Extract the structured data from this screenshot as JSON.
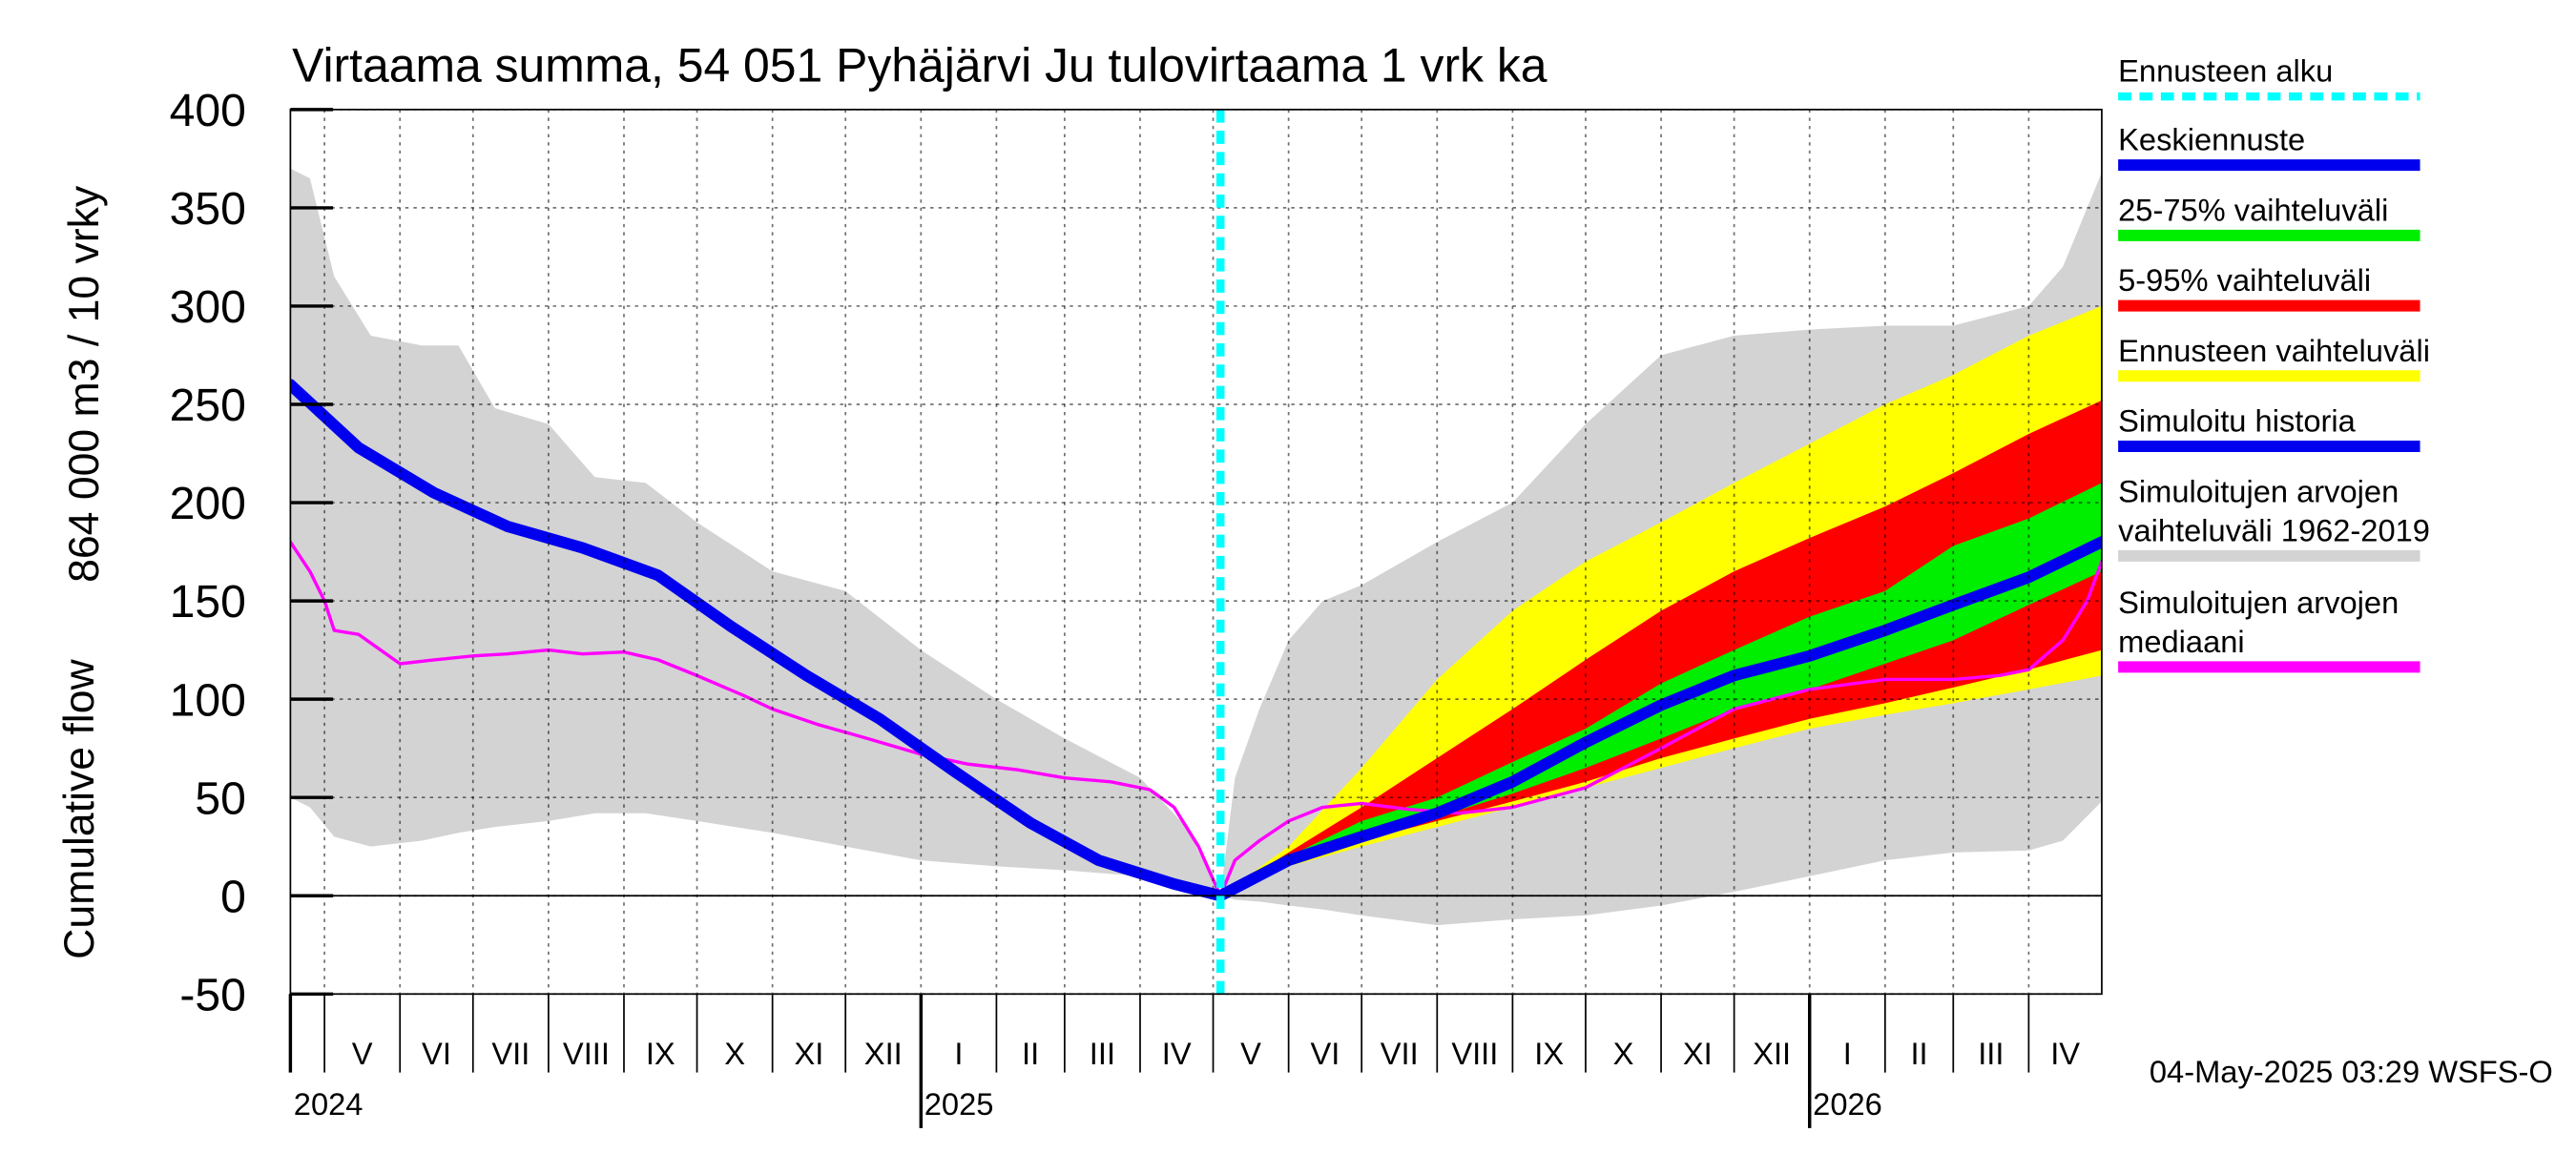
{
  "chart_data": {
    "type": "area",
    "title": "Virtaama summa, 54 051 Pyhäjärvi Ju tulovirtaama 1 vrk ka",
    "ylabel_line1": "864 000 m3 / 10 vrky",
    "ylabel_line2": "Cumulative flow",
    "ylim": [
      -50,
      400
    ],
    "yticks": [
      -50,
      0,
      50,
      100,
      150,
      200,
      250,
      300,
      350,
      400
    ],
    "grid": true,
    "legend_position": "right",
    "x_start": "2024-04-17",
    "x_end": "2026-05-01",
    "forecast_start": "2025-05-04",
    "month_labels": [
      {
        "date": "2024-05-01",
        "label": "V"
      },
      {
        "date": "2024-06-01",
        "label": "VI"
      },
      {
        "date": "2024-07-01",
        "label": "VII"
      },
      {
        "date": "2024-08-01",
        "label": "VIII"
      },
      {
        "date": "2024-09-01",
        "label": "IX"
      },
      {
        "date": "2024-10-01",
        "label": "X"
      },
      {
        "date": "2024-11-01",
        "label": "XI"
      },
      {
        "date": "2024-12-01",
        "label": "XII"
      },
      {
        "date": "2025-01-01",
        "label": "I"
      },
      {
        "date": "2025-02-01",
        "label": "II"
      },
      {
        "date": "2025-03-01",
        "label": "III"
      },
      {
        "date": "2025-04-01",
        "label": "IV"
      },
      {
        "date": "2025-05-01",
        "label": "V"
      },
      {
        "date": "2025-06-01",
        "label": "VI"
      },
      {
        "date": "2025-07-01",
        "label": "VII"
      },
      {
        "date": "2025-08-01",
        "label": "VIII"
      },
      {
        "date": "2025-09-01",
        "label": "IX"
      },
      {
        "date": "2025-10-01",
        "label": "X"
      },
      {
        "date": "2025-11-01",
        "label": "XI"
      },
      {
        "date": "2025-12-01",
        "label": "XII"
      },
      {
        "date": "2026-01-01",
        "label": "I"
      },
      {
        "date": "2026-02-01",
        "label": "II"
      },
      {
        "date": "2026-03-01",
        "label": "III"
      },
      {
        "date": "2026-04-01",
        "label": "IV"
      }
    ],
    "month_end": "2026-05-01",
    "year_labels": [
      {
        "date": "2024-01-01",
        "label": "2024"
      },
      {
        "date": "2025-01-01",
        "label": "2025"
      },
      {
        "date": "2026-01-01",
        "label": "2026"
      }
    ],
    "footer_text": "04-May-2025 03:29 WSFS-O",
    "series": [
      {
        "name": "Simuloitujen arvojen vaihteluväli 1962-2019",
        "kind": "band",
        "color": "#d3d3d3",
        "points": [
          [
            "2024-04-17",
            50,
            370
          ],
          [
            "2024-04-25",
            45,
            365
          ],
          [
            "2024-05-05",
            30,
            315
          ],
          [
            "2024-05-20",
            25,
            285
          ],
          [
            "2024-06-10",
            28,
            280
          ],
          [
            "2024-06-25",
            32,
            280
          ],
          [
            "2024-07-10",
            35,
            248
          ],
          [
            "2024-08-01",
            38,
            240
          ],
          [
            "2024-08-20",
            42,
            213
          ],
          [
            "2024-09-10",
            42,
            210
          ],
          [
            "2024-10-01",
            38,
            190
          ],
          [
            "2024-11-01",
            32,
            165
          ],
          [
            "2024-12-01",
            25,
            155
          ],
          [
            "2025-01-01",
            18,
            125
          ],
          [
            "2025-02-01",
            15,
            100
          ],
          [
            "2025-03-01",
            13,
            80
          ],
          [
            "2025-04-01",
            10,
            60
          ],
          [
            "2025-04-20",
            5,
            35
          ],
          [
            "2025-05-04",
            0,
            0
          ],
          [
            "2025-05-10",
            -2,
            60
          ],
          [
            "2025-05-20",
            -3,
            95
          ],
          [
            "2025-06-01",
            -5,
            130
          ],
          [
            "2025-06-15",
            -7,
            150
          ],
          [
            "2025-07-01",
            -10,
            158
          ],
          [
            "2025-08-01",
            -15,
            180
          ],
          [
            "2025-09-01",
            -12,
            200
          ],
          [
            "2025-10-01",
            -10,
            240
          ],
          [
            "2025-11-01",
            -5,
            275
          ],
          [
            "2025-12-01",
            2,
            285
          ],
          [
            "2026-01-01",
            10,
            288
          ],
          [
            "2026-02-01",
            18,
            290
          ],
          [
            "2026-03-01",
            22,
            290
          ],
          [
            "2026-04-01",
            23,
            300
          ],
          [
            "2026-04-15",
            28,
            320
          ],
          [
            "2026-05-01",
            48,
            368
          ]
        ]
      },
      {
        "name": "Ennusteen vaihteluväli",
        "kind": "band",
        "color": "#ffff00",
        "points": [
          [
            "2025-05-04",
            0,
            0
          ],
          [
            "2025-06-01",
            15,
            25
          ],
          [
            "2025-07-01",
            25,
            65
          ],
          [
            "2025-08-01",
            35,
            110
          ],
          [
            "2025-09-01",
            45,
            145
          ],
          [
            "2025-10-01",
            55,
            170
          ],
          [
            "2025-11-01",
            65,
            190
          ],
          [
            "2025-12-01",
            75,
            210
          ],
          [
            "2026-01-01",
            85,
            230
          ],
          [
            "2026-02-01",
            92,
            250
          ],
          [
            "2026-03-01",
            98,
            265
          ],
          [
            "2026-04-01",
            105,
            285
          ],
          [
            "2026-05-01",
            112,
            300
          ]
        ]
      },
      {
        "name": "5-95% vaihteluväli",
        "kind": "band",
        "color": "#ff0000",
        "points": [
          [
            "2025-05-04",
            0,
            0
          ],
          [
            "2025-06-01",
            17,
            22
          ],
          [
            "2025-07-01",
            28,
            45
          ],
          [
            "2025-08-01",
            38,
            70
          ],
          [
            "2025-09-01",
            48,
            95
          ],
          [
            "2025-10-01",
            58,
            120
          ],
          [
            "2025-11-01",
            70,
            145
          ],
          [
            "2025-12-01",
            80,
            165
          ],
          [
            "2026-01-01",
            90,
            182
          ],
          [
            "2026-02-01",
            98,
            198
          ],
          [
            "2026-03-01",
            106,
            215
          ],
          [
            "2026-04-01",
            115,
            235
          ],
          [
            "2026-05-01",
            125,
            252
          ]
        ]
      },
      {
        "name": "25-75% vaihteluväli",
        "kind": "band",
        "color": "#00ee00",
        "points": [
          [
            "2025-05-04",
            0,
            0
          ],
          [
            "2025-06-01",
            18,
            20
          ],
          [
            "2025-07-01",
            30,
            38
          ],
          [
            "2025-08-01",
            40,
            50
          ],
          [
            "2025-09-01",
            52,
            68
          ],
          [
            "2025-10-01",
            65,
            85
          ],
          [
            "2025-11-01",
            80,
            108
          ],
          [
            "2025-12-01",
            95,
            125
          ],
          [
            "2026-01-01",
            105,
            142
          ],
          [
            "2026-02-01",
            118,
            155
          ],
          [
            "2026-03-01",
            130,
            178
          ],
          [
            "2026-04-01",
            148,
            192
          ],
          [
            "2026-05-01",
            165,
            210
          ]
        ]
      },
      {
        "name": "Simuloitujen arvojen mediaani",
        "kind": "line",
        "color": "#ff00ff",
        "width": 2,
        "points": [
          [
            "2024-04-17",
            180
          ],
          [
            "2024-04-25",
            165
          ],
          [
            "2024-05-01",
            150
          ],
          [
            "2024-05-05",
            135
          ],
          [
            "2024-05-15",
            133
          ],
          [
            "2024-06-01",
            118
          ],
          [
            "2024-06-15",
            120
          ],
          [
            "2024-07-01",
            122
          ],
          [
            "2024-07-15",
            123
          ],
          [
            "2024-08-01",
            125
          ],
          [
            "2024-08-15",
            123
          ],
          [
            "2024-09-01",
            124
          ],
          [
            "2024-09-15",
            120
          ],
          [
            "2024-10-01",
            112
          ],
          [
            "2024-10-20",
            102
          ],
          [
            "2024-11-01",
            95
          ],
          [
            "2024-11-20",
            87
          ],
          [
            "2024-12-10",
            80
          ],
          [
            "2025-01-01",
            72
          ],
          [
            "2025-01-20",
            67
          ],
          [
            "2025-02-10",
            64
          ],
          [
            "2025-03-01",
            60
          ],
          [
            "2025-03-20",
            58
          ],
          [
            "2025-04-05",
            54
          ],
          [
            "2025-04-15",
            45
          ],
          [
            "2025-04-25",
            25
          ],
          [
            "2025-05-04",
            0
          ],
          [
            "2025-05-10",
            18
          ],
          [
            "2025-05-20",
            28
          ],
          [
            "2025-06-01",
            38
          ],
          [
            "2025-06-15",
            45
          ],
          [
            "2025-07-01",
            47
          ],
          [
            "2025-07-20",
            44
          ],
          [
            "2025-08-10",
            42
          ],
          [
            "2025-09-01",
            45
          ],
          [
            "2025-10-01",
            55
          ],
          [
            "2025-11-01",
            75
          ],
          [
            "2025-12-01",
            95
          ],
          [
            "2026-01-01",
            105
          ],
          [
            "2026-02-01",
            110
          ],
          [
            "2026-03-01",
            110
          ],
          [
            "2026-03-20",
            112
          ],
          [
            "2026-04-01",
            115
          ],
          [
            "2026-04-15",
            130
          ],
          [
            "2026-04-25",
            150
          ],
          [
            "2026-05-01",
            170
          ]
        ]
      },
      {
        "name": "Simuloitu historia",
        "kind": "line",
        "color": "#0000ee",
        "width": 7,
        "points": [
          [
            "2024-04-17",
            260
          ],
          [
            "2024-05-15",
            228
          ],
          [
            "2024-06-15",
            205
          ],
          [
            "2024-07-15",
            188
          ],
          [
            "2024-08-15",
            177
          ],
          [
            "2024-09-15",
            163
          ],
          [
            "2024-10-15",
            137
          ],
          [
            "2024-11-15",
            112
          ],
          [
            "2024-12-15",
            90
          ],
          [
            "2025-01-15",
            63
          ],
          [
            "2025-02-15",
            37
          ],
          [
            "2025-03-15",
            18
          ],
          [
            "2025-04-15",
            6
          ],
          [
            "2025-05-04",
            0
          ]
        ]
      },
      {
        "name": "Keskiennuste",
        "kind": "line",
        "color": "#0000ee",
        "width": 7,
        "points": [
          [
            "2025-05-04",
            0
          ],
          [
            "2025-06-01",
            18
          ],
          [
            "2025-07-01",
            30
          ],
          [
            "2025-08-01",
            42
          ],
          [
            "2025-09-01",
            58
          ],
          [
            "2025-10-01",
            78
          ],
          [
            "2025-11-01",
            97
          ],
          [
            "2025-12-01",
            112
          ],
          [
            "2026-01-01",
            122
          ],
          [
            "2026-02-01",
            135
          ],
          [
            "2026-03-01",
            148
          ],
          [
            "2026-04-01",
            162
          ],
          [
            "2026-05-01",
            180
          ]
        ]
      }
    ],
    "legend": [
      {
        "label": "Ennusteen alku",
        "color": "#00ffff",
        "style": "dotted"
      },
      {
        "label": "Keskiennuste",
        "color": "#0000ee",
        "style": "solid"
      },
      {
        "label": "25-75% vaihteluväli",
        "color": "#00ee00",
        "style": "solid"
      },
      {
        "label": "5-95% vaihteluväli",
        "color": "#ff0000",
        "style": "solid"
      },
      {
        "label": "Ennusteen vaihteluväli",
        "color": "#ffff00",
        "style": "solid"
      },
      {
        "label": "Simuloitu historia",
        "color": "#0000ee",
        "style": "solid"
      },
      {
        "label": "Simuloitujen arvojen vaihteluväli 1962-2019",
        "color": "#d3d3d3",
        "style": "solid"
      },
      {
        "label": "Simuloitujen arvojen mediaani",
        "color": "#ff00ff",
        "style": "solid"
      }
    ]
  }
}
